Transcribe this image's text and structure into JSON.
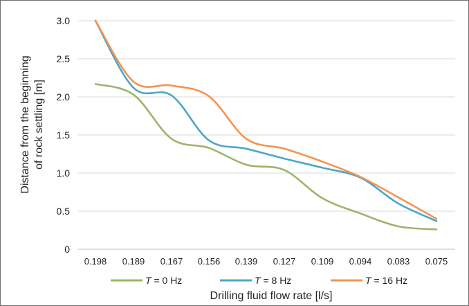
{
  "chart_data": {
    "type": "line",
    "title": "",
    "xlabel": "Drilling fluid flow rate [l/s]",
    "ylabel_lines": [
      "Distance from the beginning",
      "of rock settling [m]"
    ],
    "x": [
      "0.198",
      "0.189",
      "0.167",
      "0.156",
      "0.139",
      "0.127",
      "0.109",
      "0.094",
      "0.083",
      "0.075"
    ],
    "y_ticks": [
      "0",
      "0.5",
      "1.0",
      "1.5",
      "2.0",
      "2.5",
      "3.0"
    ],
    "ylim": [
      0,
      3.0
    ],
    "grid": "horizontal",
    "legend_position": "bottom",
    "series": [
      {
        "var": "T",
        "suffix": " = 0 Hz",
        "color": "#9cb46a",
        "values": [
          2.17,
          2.03,
          1.45,
          1.33,
          1.11,
          1.04,
          0.67,
          0.47,
          0.3,
          0.26
        ]
      },
      {
        "var": "T",
        "suffix": " = 8 Hz",
        "color": "#4ba6c8",
        "values": [
          3.0,
          2.12,
          2.02,
          1.43,
          1.32,
          1.19,
          1.07,
          0.94,
          0.6,
          0.37
        ]
      },
      {
        "var": "T",
        "suffix": " = 16 Hz",
        "color": "#f4934f",
        "values": [
          3.0,
          2.2,
          2.15,
          2.01,
          1.45,
          1.32,
          1.15,
          0.95,
          0.68,
          0.4
        ]
      }
    ]
  }
}
